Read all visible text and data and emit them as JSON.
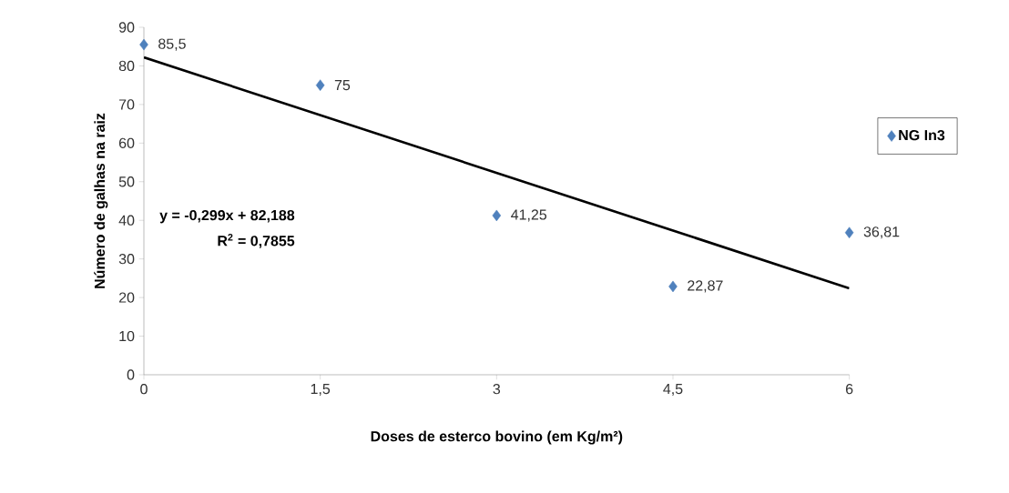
{
  "chart_data": {
    "type": "scatter",
    "xlabel": "Doses de esterco bovino (em Kg/m²)",
    "ylabel": "Número de galhas na raiz",
    "series": [
      {
        "name": "NG In3",
        "color": "#4f81bd",
        "marker": "diamond",
        "x": [
          0,
          1.5,
          3,
          4.5,
          6
        ],
        "values": [
          85.5,
          75,
          41.25,
          22.87,
          36.81
        ],
        "value_labels": [
          "85,5",
          "75",
          "41,25",
          "22,87",
          "36,81"
        ]
      },
      {
        "type": "line",
        "color": "#000000",
        "x": [
          0,
          6
        ],
        "values": [
          82.2,
          22.4
        ]
      }
    ],
    "annotations": [
      "y = -0,299x + 82,188",
      "R$^{2}$ = 0,7855"
    ],
    "xlim": [
      0,
      6
    ],
    "xticks": [
      {
        "value": 0,
        "label": "0"
      },
      {
        "value": 1.5,
        "label": "1,5"
      },
      {
        "value": 3,
        "label": "3"
      },
      {
        "value": 4.5,
        "label": "4,5"
      },
      {
        "value": 6,
        "label": "6"
      }
    ],
    "ylim": [
      0,
      90
    ],
    "yticks": [
      0,
      10,
      20,
      30,
      40,
      50,
      60,
      70,
      80,
      90
    ],
    "grid": false,
    "legend": "right"
  }
}
